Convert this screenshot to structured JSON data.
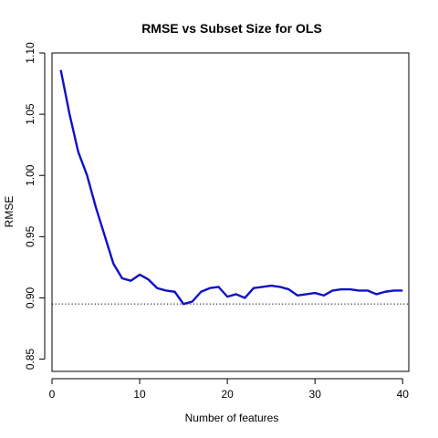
{
  "chart_data": {
    "type": "line",
    "title": "RMSE vs Subset Size for OLS",
    "xlabel": "Number of features",
    "ylabel": "RMSE",
    "xlim": [
      0,
      40.7
    ],
    "ylim": [
      0.84,
      1.1
    ],
    "xticks": [
      0,
      10,
      20,
      30,
      40
    ],
    "yticks": [
      0.85,
      0.9,
      0.95,
      1.0,
      1.05,
      1.1
    ],
    "x_tick_labels": [
      "0",
      "10",
      "20",
      "30",
      "40"
    ],
    "y_tick_labels": [
      "0.85",
      "0.90",
      "0.95",
      "1.00",
      "1.05",
      "1.10"
    ],
    "grid": false,
    "series": [
      {
        "color": "#1010c8",
        "x": [
          1,
          2,
          3,
          4,
          5,
          6,
          7,
          8,
          9,
          10,
          11,
          12,
          13,
          14,
          15,
          16,
          17,
          18,
          19,
          20,
          21,
          22,
          23,
          24,
          25,
          26,
          27,
          28,
          29,
          30,
          31,
          32,
          33,
          34,
          35,
          36,
          37,
          38,
          39,
          40
        ],
        "y": [
          1.086,
          1.05,
          1.019,
          1.0,
          0.974,
          0.951,
          0.928,
          0.916,
          0.914,
          0.919,
          0.915,
          0.908,
          0.906,
          0.905,
          0.895,
          0.897,
          0.905,
          0.908,
          0.909,
          0.901,
          0.903,
          0.9,
          0.908,
          0.909,
          0.91,
          0.909,
          0.907,
          0.902,
          0.903,
          0.904,
          0.902,
          0.906,
          0.907,
          0.907,
          0.906,
          0.906,
          0.903,
          0.905,
          0.906,
          0.906
        ]
      }
    ],
    "reference_line": {
      "y": 0.895,
      "style": "dotted",
      "color": "#000000"
    }
  }
}
